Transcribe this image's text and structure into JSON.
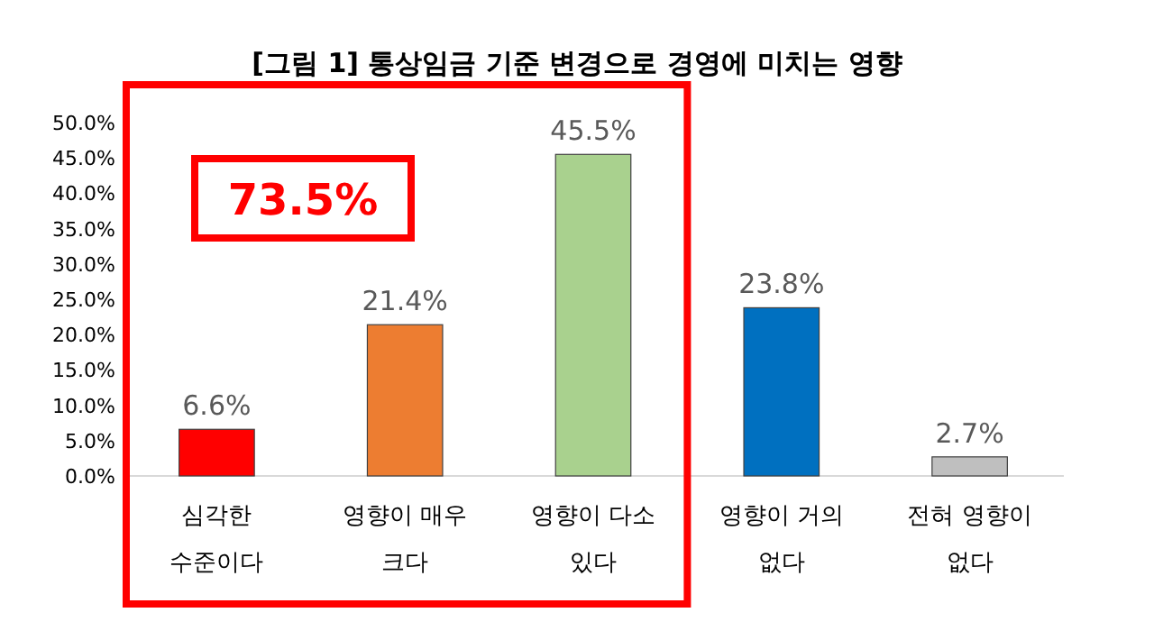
{
  "chart_data": {
    "type": "bar",
    "title": "[그림 1] 통상임금 기준 변경으로 경영에 미치는 영향",
    "categories": [
      "심각한 수준이다",
      "영향이 매우 크다",
      "영향이 다소 있다",
      "영향이 거의 없다",
      "전혀 영향이 없다"
    ],
    "values": [
      6.6,
      21.4,
      45.5,
      23.8,
      2.7
    ],
    "colors": [
      "#ff0000",
      "#ed7d31",
      "#a9d18e",
      "#0070c0",
      "#bfbfbf"
    ],
    "value_labels": [
      "6.6%",
      "21.4%",
      "45.5%",
      "23.8%",
      "2.7%"
    ],
    "ylim": [
      0,
      50
    ],
    "yticks": [
      {
        "value": 0,
        "label": "0.0%"
      },
      {
        "value": 5,
        "label": "5.0%"
      },
      {
        "value": 10,
        "label": "10.0%"
      },
      {
        "value": 15,
        "label": "15.0%"
      },
      {
        "value": 20,
        "label": "20.0%"
      },
      {
        "value": 25,
        "label": "25.0%"
      },
      {
        "value": 30,
        "label": "30.0%"
      },
      {
        "value": 35,
        "label": "35.0%"
      },
      {
        "value": 40,
        "label": "40.0%"
      },
      {
        "value": 45,
        "label": "45.0%"
      },
      {
        "value": 50,
        "label": "50.0%"
      }
    ],
    "annotations": [
      "73.5%"
    ]
  }
}
